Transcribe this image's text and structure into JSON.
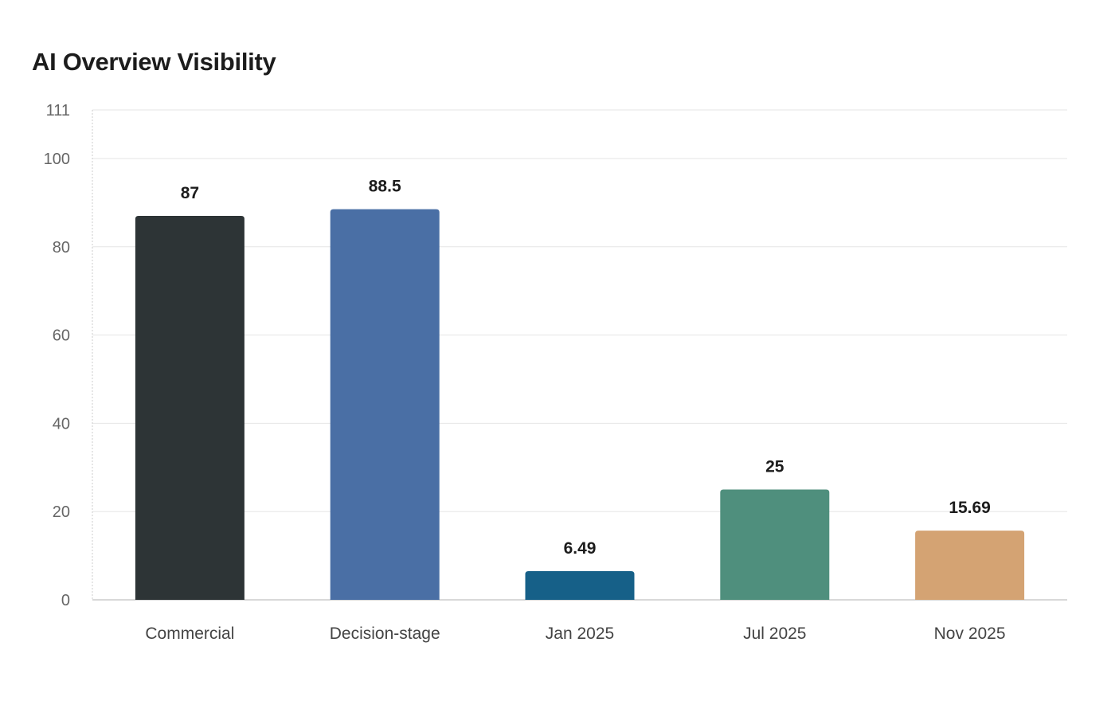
{
  "chart_data": {
    "type": "bar",
    "title": "AI Overview Visibility",
    "xlabel": "",
    "ylabel": "",
    "categories": [
      "Commercial",
      "Decision-stage",
      "Jan 2025",
      "Jul 2025",
      "Nov 2025"
    ],
    "values": [
      87,
      88.5,
      6.49,
      25,
      15.69
    ],
    "value_labels": [
      "87",
      "88.5",
      "6.49",
      "25",
      "15.69"
    ],
    "colors": [
      "#2d3436",
      "#4a6fa5",
      "#166088",
      "#4f8f7d",
      "#d4a373"
    ],
    "ylim": [
      0,
      111
    ],
    "yticks": [
      0,
      20,
      40,
      60,
      80,
      100,
      111
    ],
    "grid": true,
    "legend": "none"
  }
}
